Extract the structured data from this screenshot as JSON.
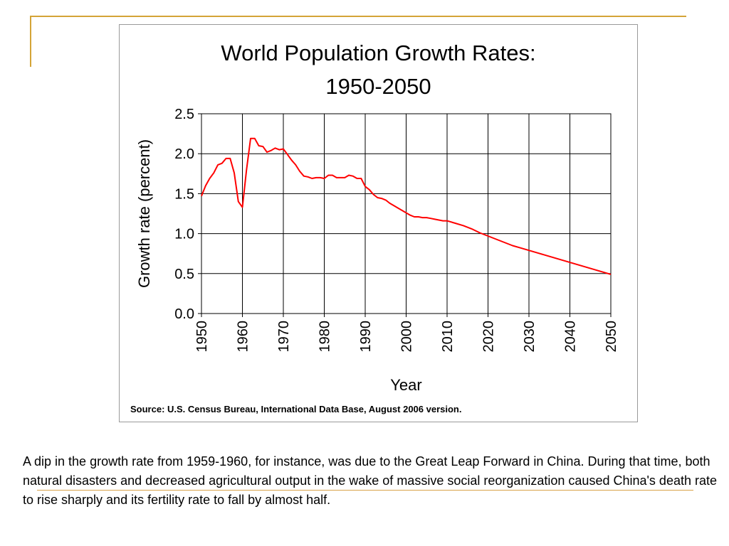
{
  "decoration_color": "#d4a437",
  "chart_data": {
    "type": "line",
    "title": "World Population Growth Rates:",
    "subtitle": "1950-2050",
    "xlabel": "Year",
    "ylabel": "Growth rate (percent)",
    "xlim": [
      1950,
      2050
    ],
    "ylim": [
      0.0,
      2.5
    ],
    "x_ticks": [
      "1950",
      "1960",
      "1970",
      "1980",
      "1990",
      "2000",
      "2010",
      "2020",
      "2030",
      "2040",
      "2050"
    ],
    "y_ticks": [
      "0.0",
      "0.5",
      "1.0",
      "1.5",
      "2.0",
      "2.5"
    ],
    "grid": true,
    "line_color": "#ff0000",
    "source": "Source: U.S. Census Bureau, International Data Base, August 2006 version.",
    "series": [
      {
        "x": [
          1950,
          1951,
          1952,
          1953,
          1954,
          1955,
          1956,
          1957,
          1958,
          1959,
          1960,
          1961,
          1962,
          1963,
          1964,
          1965,
          1966,
          1967,
          1968,
          1969,
          1970,
          1971,
          1972,
          1973,
          1974,
          1975,
          1976,
          1977,
          1978,
          1979,
          1980,
          1981,
          1982,
          1983,
          1984,
          1985,
          1986,
          1987,
          1988,
          1989,
          1990,
          1991,
          1992,
          1993,
          1994,
          1995,
          1996,
          1997,
          1998,
          1999,
          2000,
          2001,
          2002,
          2003,
          2004,
          2005,
          2006,
          2007,
          2008,
          2009,
          2010,
          2012,
          2014,
          2016,
          2018,
          2020,
          2022,
          2024,
          2026,
          2028,
          2030,
          2032,
          2034,
          2036,
          2038,
          2040,
          2042,
          2044,
          2046,
          2048,
          2050
        ],
        "values": [
          1.47,
          1.6,
          1.69,
          1.76,
          1.86,
          1.88,
          1.94,
          1.94,
          1.76,
          1.4,
          1.33,
          1.8,
          2.19,
          2.19,
          2.1,
          2.09,
          2.02,
          2.04,
          2.07,
          2.05,
          2.06,
          1.99,
          1.92,
          1.86,
          1.78,
          1.72,
          1.71,
          1.69,
          1.7,
          1.7,
          1.69,
          1.73,
          1.73,
          1.7,
          1.7,
          1.7,
          1.73,
          1.72,
          1.69,
          1.69,
          1.59,
          1.55,
          1.49,
          1.45,
          1.44,
          1.42,
          1.38,
          1.35,
          1.32,
          1.29,
          1.26,
          1.23,
          1.21,
          1.21,
          1.2,
          1.2,
          1.19,
          1.18,
          1.17,
          1.16,
          1.16,
          1.13,
          1.1,
          1.06,
          1.01,
          0.97,
          0.93,
          0.89,
          0.85,
          0.82,
          0.79,
          0.76,
          0.73,
          0.7,
          0.67,
          0.64,
          0.61,
          0.58,
          0.55,
          0.52,
          0.49
        ]
      }
    ]
  },
  "caption": "A dip in the growth rate from 1959-1960, for instance, was due to the Great Leap Forward in China. During that time, both natural disasters and decreased agricultural output in the wake of massive social reorganization caused China's death rate to rise sharply and its fertility rate to fall by almost half."
}
